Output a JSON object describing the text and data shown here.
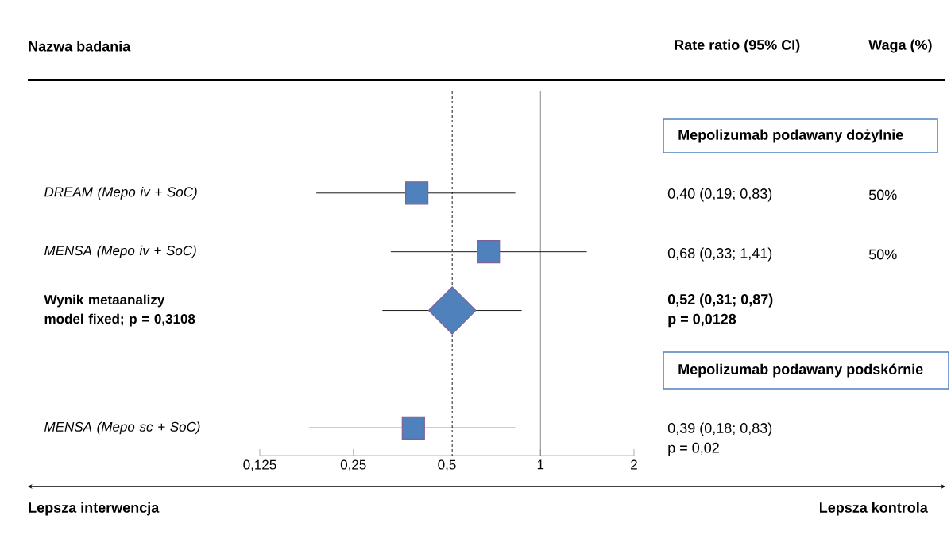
{
  "chart_data": {
    "type": "scatter",
    "orientation": "horizontal",
    "log": "x",
    "categories": [
      "DREAM (Mepo iv + SoC)",
      "MENSA (Mepo iv + SoC)",
      "Wynik metaanalizy model fixed; p = 0,3108",
      null,
      "MENSA (Mepo sc + SoC)"
    ],
    "series": [
      {
        "color": "#4f81bd",
        "marker": "square",
        "values": [
          0.4,
          0.68,
          null,
          null,
          0.39
        ],
        "errors": [
          [
            0.19,
            0.83
          ],
          [
            0.33,
            1.41
          ],
          null,
          null,
          [
            0.18,
            0.83
          ]
        ]
      },
      {
        "color": "#4f81bd",
        "marker": "diamond",
        "values": [
          null,
          null,
          0.52,
          null,
          null
        ],
        "errors": [
          null,
          null,
          [
            0.31,
            0.87
          ],
          null,
          null
        ]
      }
    ],
    "xlim": [
      0.125,
      2
    ],
    "xticks": [
      {
        "value": 0.125,
        "label": "0,125"
      },
      {
        "value": 0.25,
        "label": "0,25"
      },
      {
        "value": 0.5,
        "label": "0,5"
      },
      1,
      2
    ],
    "ref_lines": [
      {
        "axis": "x",
        "value": 1,
        "color": "#808080"
      },
      {
        "axis": "x",
        "value": 0.52,
        "color": "#000000",
        "line_style": "dashed"
      }
    ],
    "annotations": [
      "Nazwa badania",
      "Rate ratio (95% CI)",
      "Waga (%)",
      "Mepolizumab podawany dożylnie",
      "0,40 (0,19; 0,83)",
      "50%",
      "0,68 (0,33; 1,41)",
      "50%",
      "0,52 (0,31; 0,87)",
      "p = 0,0128",
      "Mepolizumab podawany podskórnie",
      "0,39 (0,18; 0,83)",
      "p = 0,02",
      "Lepsza interwencja",
      "Lepsza kontrola"
    ],
    "legend": false,
    "grid": false
  }
}
